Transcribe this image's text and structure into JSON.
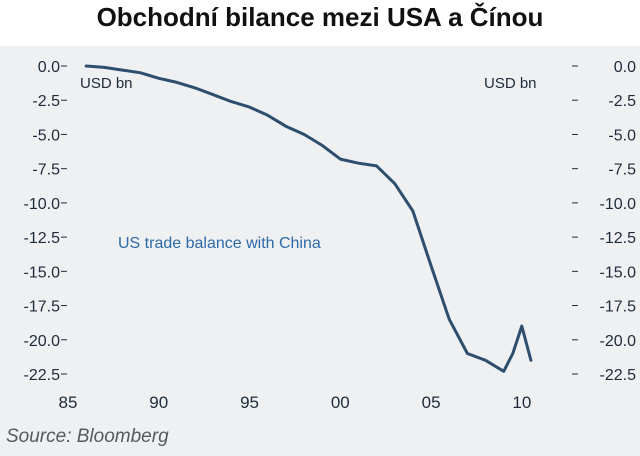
{
  "title": "Obchodní bilance mezi USA a Čínou",
  "source": "Source: Bloomberg",
  "chart_data": {
    "type": "line",
    "title": "Obchodní bilance mezi USA a Čínou",
    "unit_left": "USD bn",
    "unit_right": "USD bn",
    "series_label": "US trade balance with China",
    "x_ticks": [
      "85",
      "90",
      "95",
      "00",
      "05",
      "10"
    ],
    "y_ticks": [
      "0.0",
      "-2.5",
      "-5.0",
      "-7.5",
      "-10.0",
      "-12.5",
      "-15.0",
      "-17.5",
      "-20.0",
      "-22.5"
    ],
    "ylim": [
      -22.5,
      0
    ],
    "xlim": [
      1985,
      2011
    ],
    "grid": false,
    "colors": {
      "line": "#2e4e6e",
      "label": "#2e6aa8",
      "axis_text": "#1f2a3a",
      "background": "#eef0f2"
    },
    "series": [
      {
        "name": "US trade balance with China",
        "x": [
          1986,
          1987,
          1988,
          1989,
          1990,
          1991,
          1992,
          1993,
          1994,
          1995,
          1996,
          1997,
          1998,
          1999,
          2000,
          2001,
          2002,
          2003,
          2004,
          2005,
          2006,
          2007,
          2008,
          2008.5,
          2009,
          2009.5,
          2010,
          2010.5
        ],
        "y": [
          0.0,
          -0.1,
          -0.3,
          -0.5,
          -0.9,
          -1.2,
          -1.6,
          -2.1,
          -2.6,
          -3.0,
          -3.6,
          -4.4,
          -5.0,
          -5.8,
          -6.8,
          -7.1,
          -7.3,
          -8.6,
          -10.6,
          -14.6,
          -18.5,
          -21.0,
          -21.5,
          -21.9,
          -22.3,
          -21.0,
          -19.0,
          -21.5
        ]
      }
    ]
  }
}
